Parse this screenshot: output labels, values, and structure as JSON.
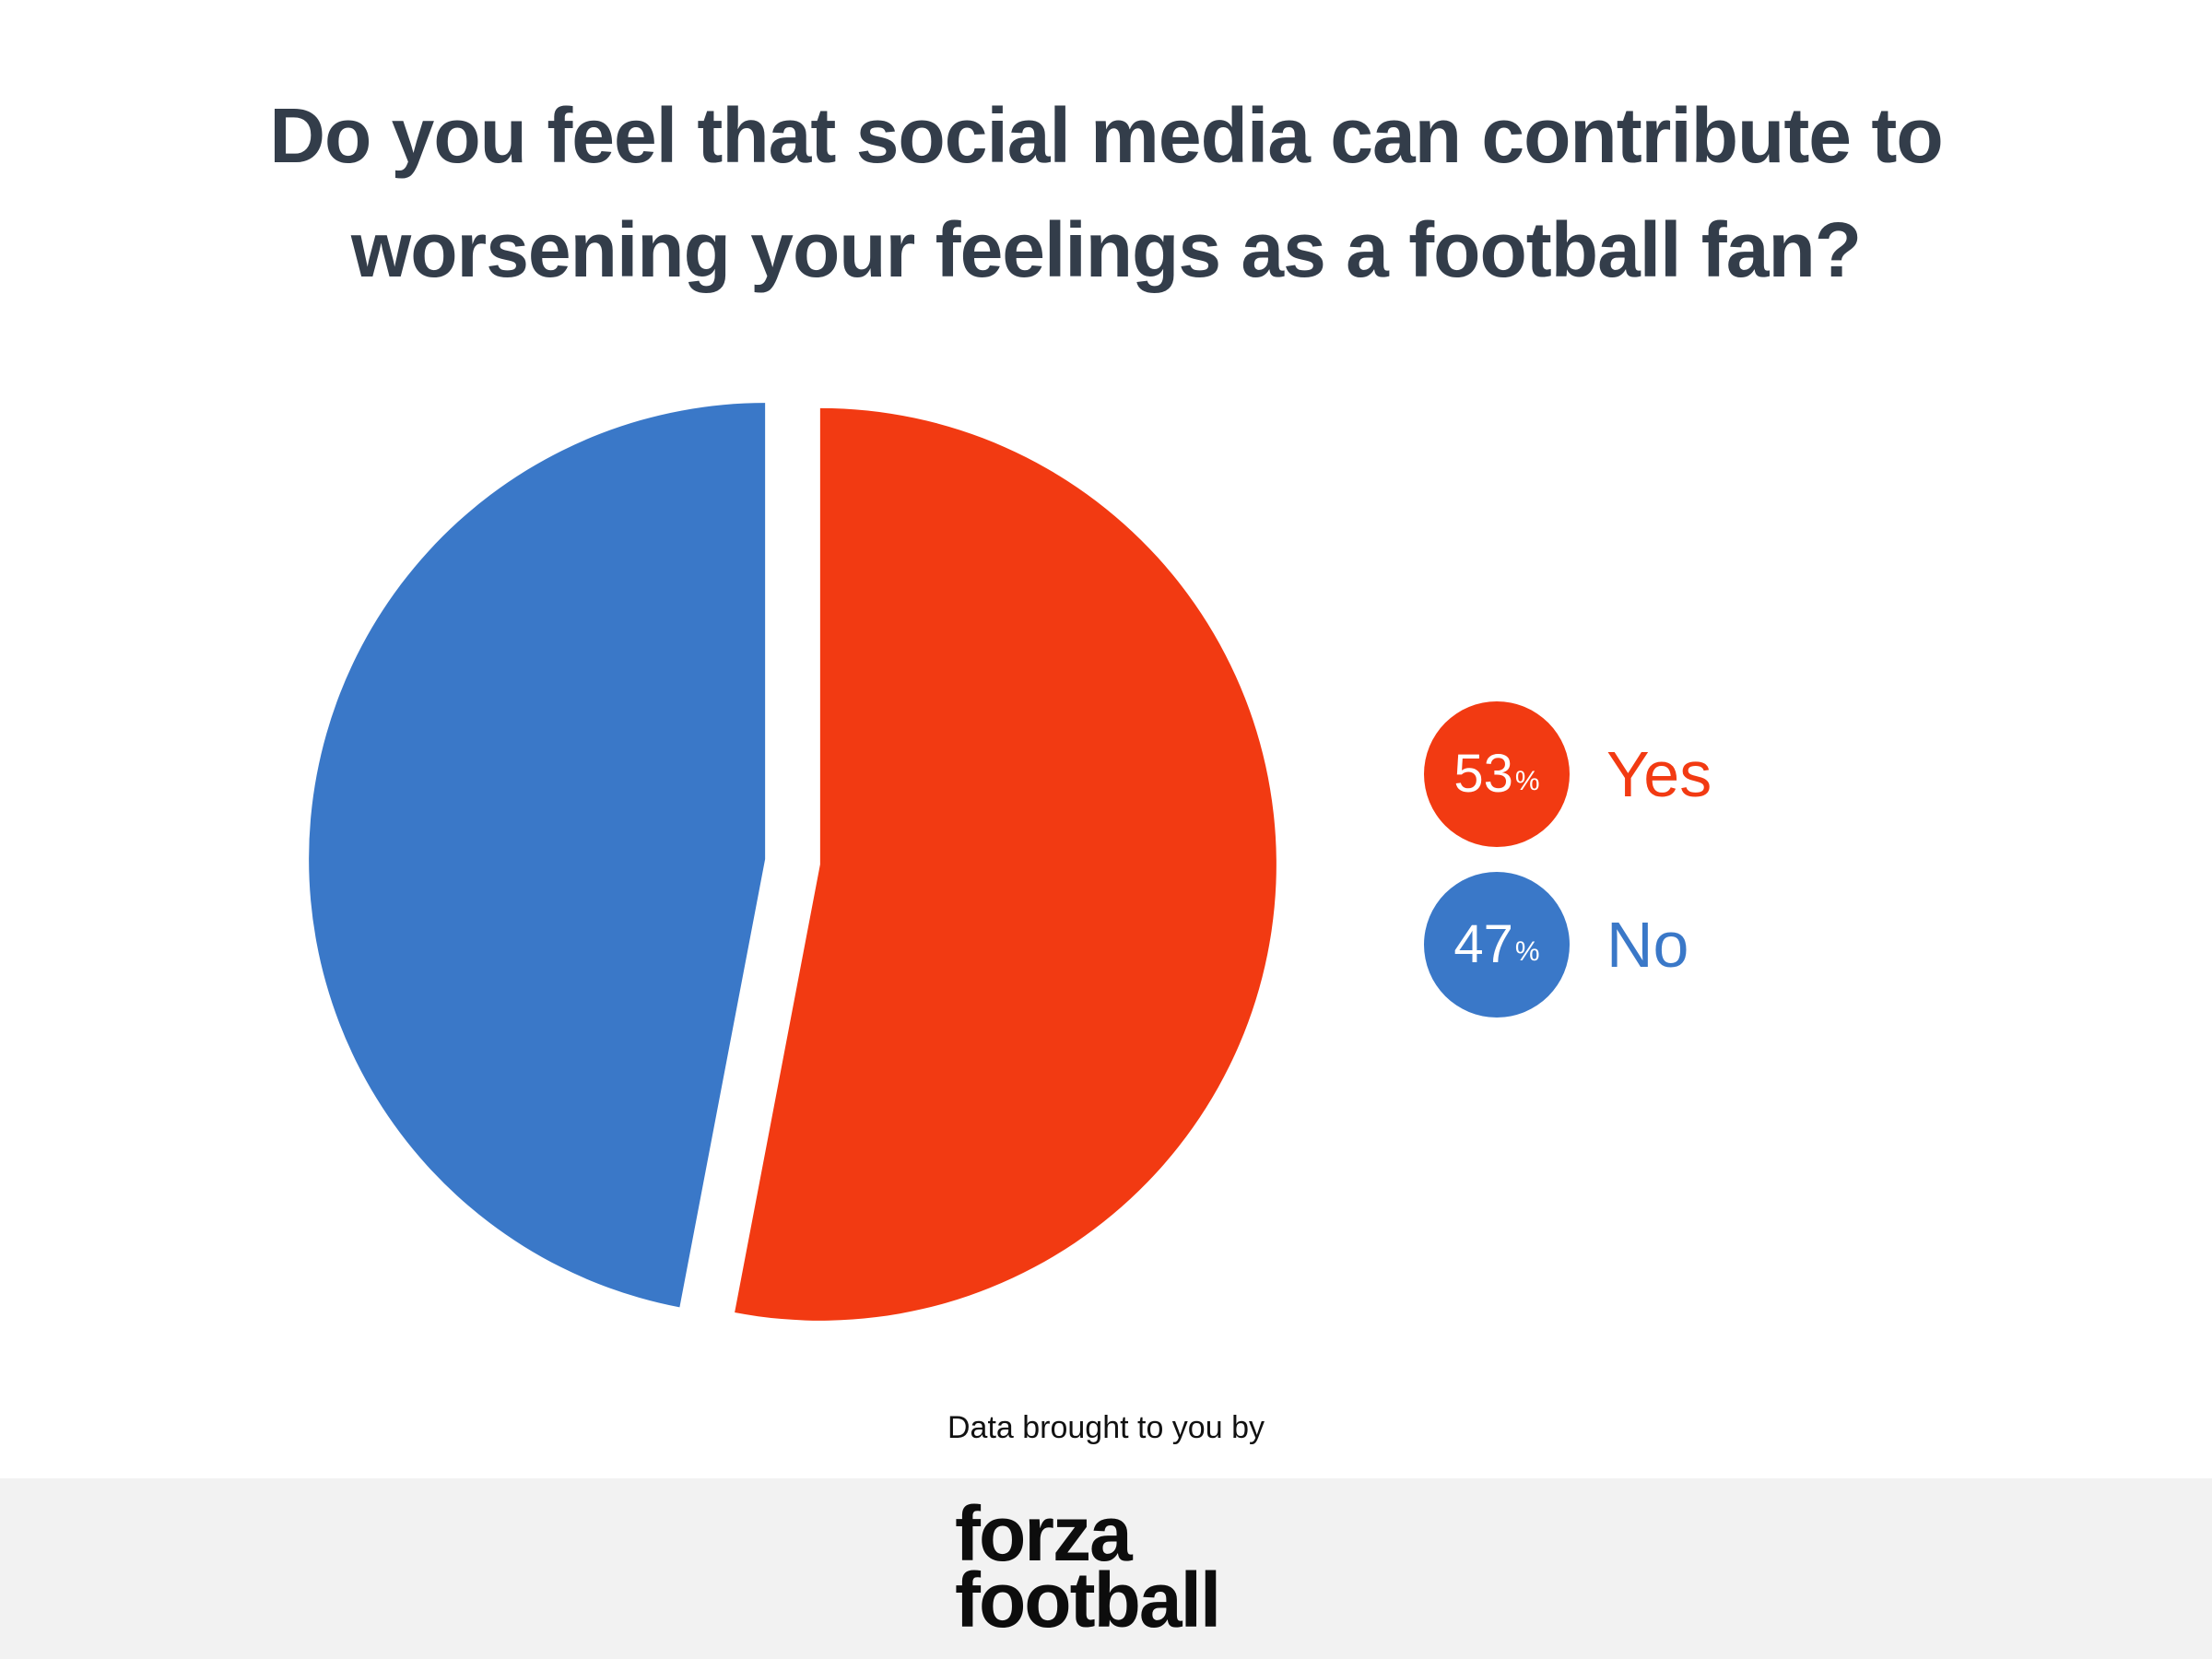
{
  "title": {
    "line1": "Do you feel that social media can contribute to",
    "line2": "worsening your feelings as a football fan?"
  },
  "chart_data": {
    "type": "pie",
    "title": "Do you feel that social media can contribute to worsening your feelings as a football fan?",
    "slices": [
      {
        "label": "Yes",
        "value": 53,
        "value_text": "53",
        "unit": "%",
        "color": "#f23a12"
      },
      {
        "label": "No",
        "value": 47,
        "value_text": "47",
        "unit": "%",
        "color": "#3a78c8"
      }
    ],
    "legend_placement": "right",
    "exploded": true
  },
  "colors": {
    "title": "#333d4a",
    "yes": "#f23a12",
    "no": "#3a78c8",
    "footer_bg": "#f2f2f2"
  },
  "credit": {
    "text": "Data brought to you by"
  },
  "logo": {
    "line1": "forza",
    "line2": "football"
  }
}
